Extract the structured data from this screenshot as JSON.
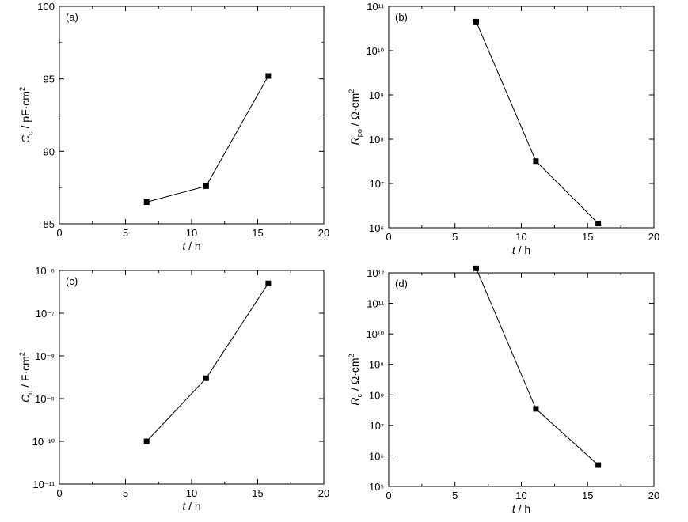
{
  "chart_data": [
    {
      "type": "line",
      "panel_label": "(a)",
      "xlabel": {
        "var": "t",
        "unit": " / h"
      },
      "ylabel": {
        "var": "C",
        "sub": "c",
        "unit": " / pF·cm",
        "sup": "2"
      },
      "xlim": [
        0,
        20
      ],
      "xticks": [
        0,
        5,
        10,
        15,
        20
      ],
      "ylim": [
        85,
        100
      ],
      "yscale": "linear",
      "yticks": [
        85,
        90,
        95,
        100
      ],
      "grid": false,
      "marker": "square",
      "x": [
        6.6,
        11.1,
        15.8
      ],
      "y": [
        86.5,
        87.6,
        95.2
      ]
    },
    {
      "type": "line",
      "panel_label": "(b)",
      "xlabel": {
        "var": "t",
        "unit": " / h"
      },
      "ylabel": {
        "var": "R",
        "sub": "po",
        "unit": " / Ω·cm",
        "sup": "2"
      },
      "xlim": [
        0,
        20
      ],
      "xticks": [
        0,
        5,
        10,
        15,
        20
      ],
      "ylim": [
        1000000.0,
        100000000000.0
      ],
      "yscale": "log",
      "yticks": [
        1000000.0,
        10000000.0,
        100000000.0,
        1000000000.0,
        10000000000.0,
        100000000000.0
      ],
      "grid": false,
      "marker": "square",
      "x": [
        6.6,
        11.1,
        15.8
      ],
      "y": [
        45000000000.0,
        32000000.0,
        1250000.0
      ]
    },
    {
      "type": "line",
      "panel_label": "(c)",
      "xlabel": {
        "var": "t",
        "unit": " / h"
      },
      "ylabel": {
        "var": "C",
        "sub": "d",
        "unit": " / F·cm",
        "sup": "2"
      },
      "xlim": [
        0,
        20
      ],
      "xticks": [
        0,
        5,
        10,
        15,
        20
      ],
      "ylim": [
        1e-11,
        1e-06
      ],
      "yscale": "log",
      "yticks": [
        1e-11,
        1e-10,
        1e-09,
        1e-08,
        1e-07,
        1e-06
      ],
      "grid": false,
      "marker": "square",
      "x": [
        6.6,
        11.1,
        15.8
      ],
      "y": [
        1e-10,
        3e-09,
        5e-07
      ]
    },
    {
      "type": "line",
      "panel_label": "(d)",
      "xlabel": {
        "var": "t",
        "unit": " / h"
      },
      "ylabel": {
        "var": "R",
        "sub": "c",
        "unit": " / Ω·cm",
        "sup": "2"
      },
      "xlim": [
        0,
        20
      ],
      "xticks": [
        0,
        5,
        10,
        15,
        20
      ],
      "ylim": [
        100000.0,
        1000000000000.0
      ],
      "yscale": "log",
      "yticks": [
        100000.0,
        1000000.0,
        10000000.0,
        100000000.0,
        1000000000.0,
        10000000000.0,
        100000000000.0,
        1000000000000.0
      ],
      "grid": false,
      "marker": "square",
      "x": [
        6.6,
        11.1,
        15.8
      ],
      "y": [
        1400000000000.0,
        35000000.0,
        500000.0
      ]
    }
  ]
}
